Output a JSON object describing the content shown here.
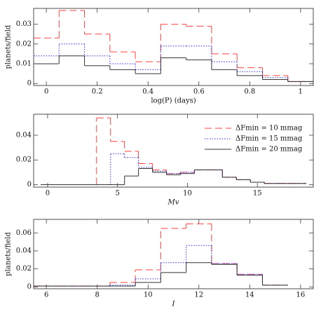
{
  "chart_data": [
    {
      "type": "histogram",
      "ylabel": "planets/field",
      "xlabel": "log(P) (days)",
      "bins": [
        -0.05,
        0.05,
        0.15,
        0.25,
        0.35,
        0.45,
        0.55,
        0.65,
        0.75,
        0.85,
        0.95,
        1.05
      ],
      "xlim": [
        -0.05,
        1.05
      ],
      "xticks": [
        0,
        0.2,
        0.4,
        0.6,
        0.8,
        1
      ],
      "ylim": [
        -0.001,
        0.038
      ],
      "yticks": [
        0,
        0.01,
        0.02,
        0.03
      ],
      "series": [
        {
          "color": "#ff4040",
          "values": [
            0.023,
            0.037,
            0.025,
            0.016,
            0.011,
            0.03,
            0.029,
            0.015,
            0.008,
            0.004,
            0.001
          ]
        },
        {
          "color": "#2b2bff",
          "values": [
            0.014,
            0.02,
            0.014,
            0.01,
            0.007,
            0.019,
            0.019,
            0.011,
            0.006,
            0.003,
            0.001
          ]
        },
        {
          "color": "#333333",
          "values": [
            0.01,
            0.014,
            0.009,
            0.007,
            0.005,
            0.013,
            0.012,
            0.007,
            0.004,
            0.002,
            0.001
          ]
        }
      ]
    },
    {
      "type": "histogram",
      "xlabel": "Mv",
      "legend": "upper right",
      "bins": [
        -0.5,
        0.5,
        1.5,
        2.5,
        3.5,
        4.5,
        5.5,
        6.5,
        7.5,
        8.5,
        9.5,
        10.5,
        11.5,
        12.5,
        13.5,
        14.5,
        15.5,
        16.5,
        17.5,
        18.5
      ],
      "xlim": [
        -1,
        19
      ],
      "xticks": [
        0,
        5,
        10,
        15
      ],
      "ylim": [
        -0.002,
        0.057
      ],
      "yticks": [
        0,
        0.02,
        0.04
      ],
      "series": [
        {
          "name": "ΔFmin = 10 mmag",
          "color": "#ff4040",
          "values": [
            0,
            0,
            0,
            0,
            0.054,
            0.035,
            0.027,
            0.017,
            0.012,
            0.009,
            0.01,
            0.012,
            0.012,
            0.006,
            0.004,
            0.002,
            0.001,
            0.001,
            0.001
          ]
        },
        {
          "name": "ΔFmin = 15 mmag",
          "color": "#2b2bff",
          "values": [
            0,
            0,
            0,
            0,
            0,
            0.025,
            0.022,
            0.014,
            0.011,
            0.009,
            0.01,
            0.012,
            0.012,
            0.006,
            0.004,
            0.002,
            0.001,
            0.001,
            0.001
          ]
        },
        {
          "name": "ΔFmin = 20 mmag",
          "color": "#333333",
          "values": [
            0,
            0,
            0,
            0,
            0,
            0,
            0.007,
            0.013,
            0.01,
            0.008,
            0.009,
            0.012,
            0.012,
            0.006,
            0.004,
            0.002,
            0.001,
            0.001,
            0.001
          ]
        }
      ]
    },
    {
      "type": "histogram",
      "ylabel": "planets/field",
      "xlabel": "I",
      "bins": [
        5.5,
        6.5,
        7.5,
        8.5,
        9.5,
        10.5,
        11.5,
        12.5,
        13.5,
        14.5,
        15.5
      ],
      "xlim": [
        5.5,
        16.5
      ],
      "xticks": [
        6,
        8,
        10,
        12,
        14,
        16
      ],
      "ylim": [
        -0.002,
        0.075
      ],
      "yticks": [
        0,
        0.02,
        0.04,
        0.06
      ],
      "series": [
        {
          "color": "#ff4040",
          "values": [
            0.001,
            0.001,
            0.001,
            0.005,
            0.019,
            0.065,
            0.07,
            0.026,
            0.014,
            0.002
          ]
        },
        {
          "color": "#2b2bff",
          "values": [
            0.001,
            0.001,
            0.001,
            0.002,
            0.009,
            0.027,
            0.046,
            0.026,
            0.014,
            0.002
          ]
        },
        {
          "color": "#333333",
          "values": [
            0.001,
            0.001,
            0.001,
            0.001,
            0.005,
            0.016,
            0.027,
            0.025,
            0.013,
            0.002
          ]
        }
      ]
    }
  ]
}
